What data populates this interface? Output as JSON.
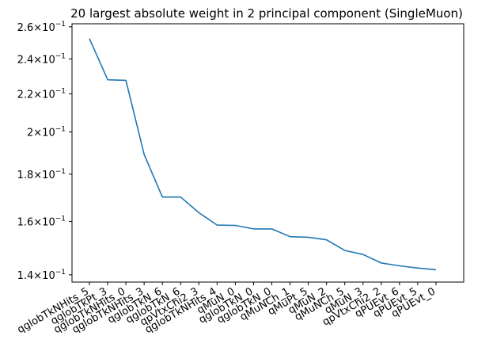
{
  "chart_data": {
    "type": "line",
    "title": "20 largest absolute weight in 2 principal component (SingleMuon)",
    "xlabel": "",
    "ylabel": "",
    "yscale": "log",
    "grid": false,
    "categories": [
      "qglobTkNHits_5",
      "qglobTkPt_3",
      "qglobTkNHits_0",
      "qglobTkNHits_3",
      "qglobTkN_6",
      "qglobTkN_6",
      "qpVtxChi2_3",
      "qglobTkNHits_4",
      "qMuN_0",
      "qglobTkN_0",
      "qglobTkN_0",
      "qMuNCh_1",
      "qMuPt_5",
      "qMuN_2",
      "qMuNCh_5",
      "qMuN_3",
      "qpVtxChi2_2",
      "qPUEvt_6",
      "qPUEvt_5",
      "qPUEvt_0"
    ],
    "values": [
      0.2525,
      0.2278,
      0.2275,
      0.189,
      0.17,
      0.17,
      0.1635,
      0.1585,
      0.1584,
      0.157,
      0.157,
      0.154,
      0.1538,
      0.1528,
      0.1488,
      0.1473,
      0.1442,
      0.1432,
      0.1424,
      0.1418
    ],
    "ylim": [
      0.1375,
      0.262
    ],
    "yticks": [
      {
        "value": 0.14,
        "base": "1.4",
        "times": "×",
        "exp_base": "10",
        "exp": "−1"
      },
      {
        "value": 0.16,
        "base": "1.6",
        "times": "×",
        "exp_base": "10",
        "exp": "−1"
      },
      {
        "value": 0.18,
        "base": "1.8",
        "times": "×",
        "exp_base": "10",
        "exp": "−1"
      },
      {
        "value": 0.2,
        "base": "2",
        "times": "×",
        "exp_base": "10",
        "exp": "−1"
      },
      {
        "value": 0.22,
        "base": "2.2",
        "times": "×",
        "exp_base": "10",
        "exp": "−1"
      },
      {
        "value": 0.24,
        "base": "2.4",
        "times": "×",
        "exp_base": "10",
        "exp": "−1"
      },
      {
        "value": 0.26,
        "base": "2.6",
        "times": "×",
        "exp_base": "10",
        "exp": "−1"
      }
    ],
    "line_color": "#1f77b4"
  }
}
